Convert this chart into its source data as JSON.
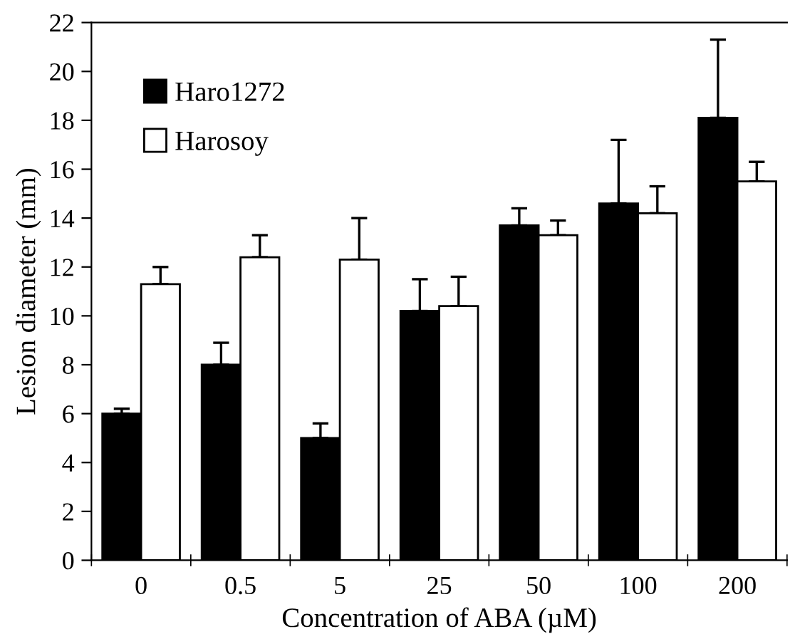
{
  "chart_data": {
    "type": "bar",
    "xlabel": "Concentration of ABA (µM)",
    "ylabel": "Lesion diameter (mm)",
    "categories": [
      "0",
      "0.5",
      "5",
      "25",
      "50",
      "100",
      "200"
    ],
    "series": [
      {
        "name": "Haro1272",
        "color": "#000000",
        "values": [
          6.0,
          8.0,
          5.0,
          10.2,
          13.7,
          14.6,
          18.1
        ],
        "errors": [
          [
            6.0,
            6.2
          ],
          [
            8.0,
            8.9
          ],
          [
            5.0,
            5.6
          ],
          [
            10.2,
            11.5
          ],
          [
            13.7,
            14.4
          ],
          [
            14.6,
            17.2
          ],
          [
            18.1,
            21.3
          ]
        ]
      },
      {
        "name": "Harosoy",
        "color": "#ffffff",
        "values": [
          11.3,
          12.4,
          12.3,
          10.4,
          13.3,
          14.2,
          15.5
        ],
        "errors": [
          [
            11.3,
            12.0
          ],
          [
            12.4,
            13.3
          ],
          [
            12.3,
            14.0
          ],
          [
            10.4,
            11.6
          ],
          [
            13.3,
            13.9
          ],
          [
            14.2,
            15.3
          ],
          [
            15.5,
            16.3
          ]
        ]
      }
    ],
    "ylim": [
      0,
      22
    ],
    "yticks": [
      0,
      2,
      4,
      6,
      8,
      10,
      12,
      14,
      16,
      18,
      20,
      22
    ],
    "legend": "top left",
    "grid": false
  }
}
